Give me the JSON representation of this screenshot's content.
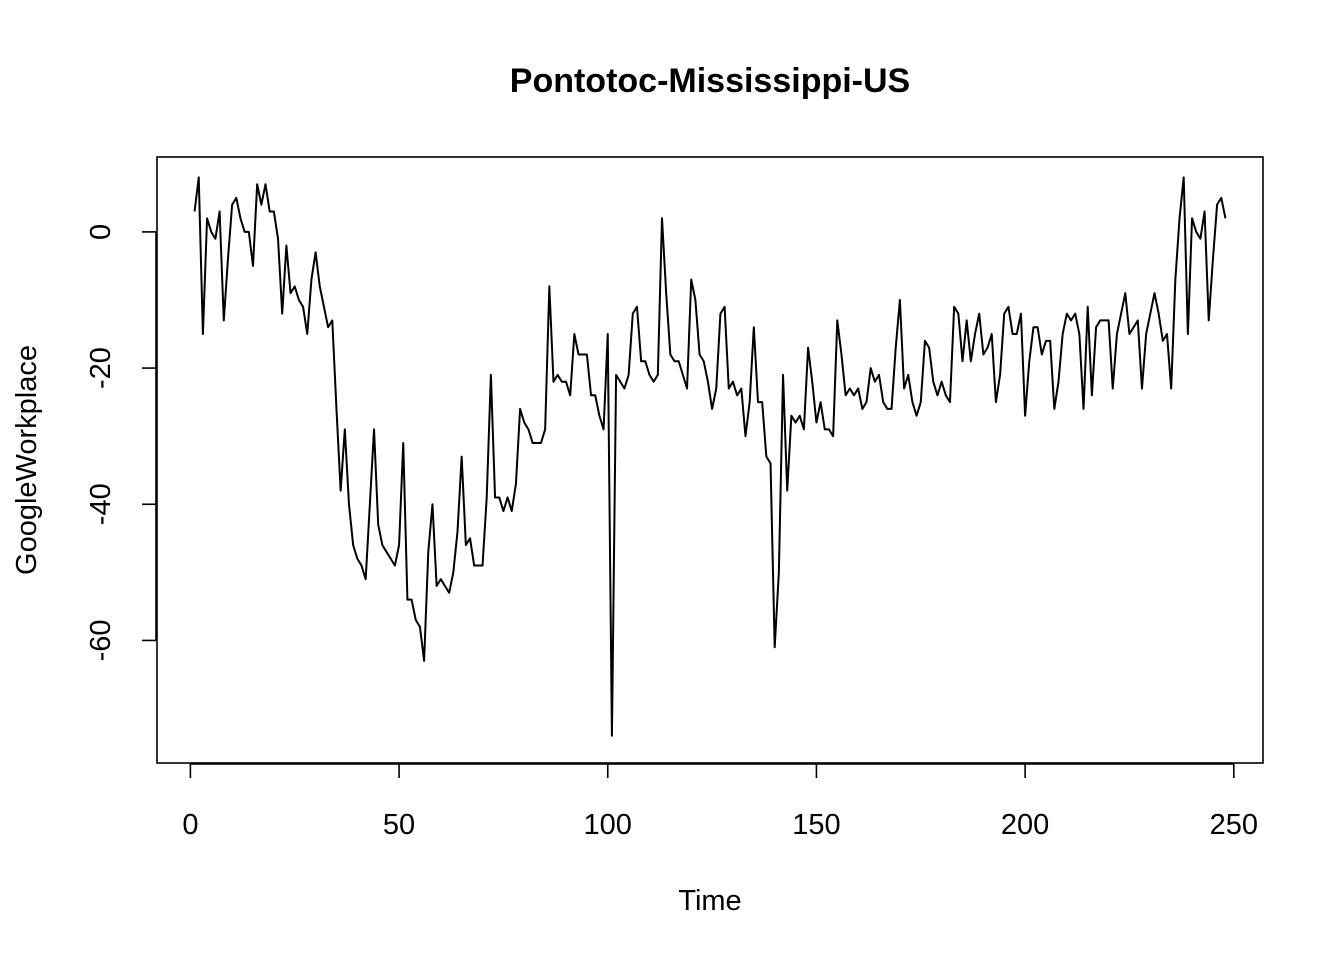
{
  "chart_data": {
    "type": "line",
    "title": "Pontotoc-Mississippi-US",
    "xlabel": "Time",
    "ylabel": "GoogleWorkplace",
    "xlim": [
      -8,
      257
    ],
    "ylim": [
      -78,
      11
    ],
    "x_ticks": [
      0,
      50,
      100,
      150,
      200,
      250
    ],
    "y_ticks": [
      0,
      -20,
      -40,
      -60
    ],
    "grid": false,
    "legend": "none",
    "line_color": "#000000",
    "series": [
      {
        "x_start": 1,
        "values": [
          3,
          8,
          -15,
          2,
          0,
          -1,
          3,
          -13,
          -4,
          4,
          5,
          2,
          0,
          0,
          -5,
          7,
          4,
          7,
          3,
          3,
          -1,
          -12,
          -2,
          -9,
          -8,
          -10,
          -11,
          -15,
          -7,
          -3,
          -8,
          -11,
          -14,
          -13,
          -26,
          -38,
          -29,
          -40,
          -46,
          -48,
          -49,
          -51,
          -40,
          -29,
          -43,
          -46,
          -47,
          -48,
          -49,
          -46,
          -31,
          -54,
          -54,
          -57,
          -58,
          -63,
          -47,
          -40,
          -52,
          -51,
          -52,
          -53,
          -50,
          -44,
          -33,
          -46,
          -45,
          -49,
          -49,
          -49,
          -39,
          -21,
          -39,
          -39,
          -41,
          -39,
          -41,
          -37,
          -26,
          -28,
          -29,
          -31,
          -31,
          -31,
          -29,
          -8,
          -22,
          -21,
          -22,
          -22,
          -24,
          -15,
          -18,
          -18,
          -18,
          -24,
          -24,
          -27,
          -29,
          -15,
          -74,
          -21,
          -22,
          -23,
          -21,
          -12,
          -11,
          -19,
          -19,
          -21,
          -22,
          -21,
          2,
          -9,
          -18,
          -19,
          -19,
          -21,
          -23,
          -7,
          -10,
          -18,
          -19,
          -22,
          -26,
          -23,
          -12,
          -11,
          -23,
          -22,
          -24,
          -23,
          -30,
          -25,
          -14,
          -25,
          -25,
          -33,
          -34,
          -61,
          -50,
          -21,
          -38,
          -27,
          -28,
          -27,
          -29,
          -17,
          -22,
          -28,
          -25,
          -29,
          -29,
          -30,
          -13,
          -18,
          -24,
          -23,
          -24,
          -23,
          -26,
          -25,
          -20,
          -22,
          -21,
          -25,
          -26,
          -26,
          -17,
          -10,
          -23,
          -21,
          -25,
          -27,
          -25,
          -16,
          -17,
          -22,
          -24,
          -22,
          -24,
          -25,
          -11,
          -12,
          -19,
          -13,
          -19,
          -15,
          -12,
          -18,
          -17,
          -15,
          -25,
          -21,
          -12,
          -11,
          -15,
          -15,
          -12,
          -27,
          -19,
          -14,
          -14,
          -18,
          -16,
          -16,
          -26,
          -22,
          -15,
          -12,
          -13,
          -12,
          -15,
          -26,
          -11,
          -24,
          -14,
          -13,
          -13,
          -13,
          -23,
          -15,
          -12,
          -9,
          -15,
          -14,
          -13,
          -23,
          -15,
          -12,
          -9,
          -12,
          -16,
          -15,
          -23,
          -7,
          2,
          8,
          -15,
          2,
          0,
          -1,
          3,
          -13,
          -4,
          4,
          5,
          2
        ]
      }
    ]
  }
}
